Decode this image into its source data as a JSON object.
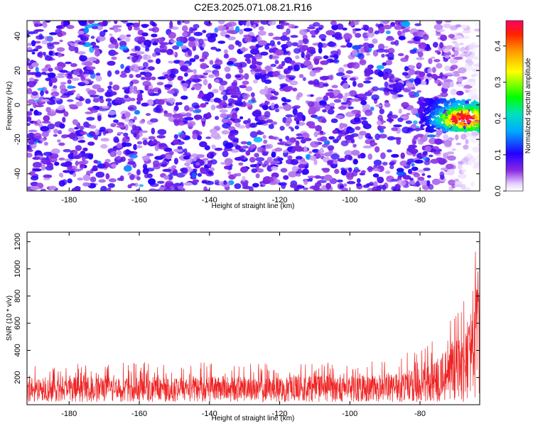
{
  "title": "C2E3.2025.071.08.21.R16",
  "chart_data": [
    {
      "type": "heatmap",
      "xlabel": "Height of straight line (km)",
      "ylabel": "Frequency (Hz)",
      "xlim": [
        -192,
        -63
      ],
      "ylim": [
        -50,
        49
      ],
      "x_ticks": [
        "-180",
        "-160",
        "-140",
        "-120",
        "-100",
        "-80"
      ],
      "x_tick_values": [
        -180,
        -160,
        -140,
        -120,
        -100,
        -80
      ],
      "y_ticks": [
        "40",
        "20",
        "0",
        "-20",
        "-40"
      ],
      "y_tick_values": [
        40,
        20,
        0,
        -20,
        -40
      ],
      "colorbar": {
        "label": "Normalized spectral amplitude",
        "range": [
          0,
          0.47
        ],
        "ticks": [
          "0.0",
          "0.1",
          "0.2",
          "0.3",
          "0.4"
        ],
        "tick_values": [
          0.0,
          0.1,
          0.2,
          0.3,
          0.4
        ]
      },
      "signal": {
        "height_range_km": [
          -80,
          -63
        ],
        "frequency_range_hz": [
          -15,
          3
        ],
        "peak_amplitude": 0.45,
        "peak_height_km": -68,
        "peak_frequency_hz": -8
      },
      "background_amplitude": 0.07
    },
    {
      "type": "line",
      "xlabel": "Height of straight line (km)",
      "ylabel": "SNR (10 * v/v)",
      "xlim": [
        -192,
        -63
      ],
      "ylim": [
        0,
        1270
      ],
      "x_ticks": [
        "-180",
        "-160",
        "-140",
        "-120",
        "-100",
        "-80"
      ],
      "x_tick_values": [
        -180,
        -160,
        -140,
        -120,
        -100,
        -80
      ],
      "y_ticks": [
        "200",
        "400",
        "600",
        "800",
        "1000",
        "1200"
      ],
      "y_tick_values": [
        200,
        400,
        600,
        800,
        1000,
        1200
      ],
      "color": "#ee2222",
      "series": [
        {
          "x": [
            -192,
            -180,
            -170,
            -160,
            -150,
            -140,
            -130,
            -120,
            -110,
            -100,
            -90,
            -85,
            -80,
            -77,
            -75,
            -73,
            -71,
            -69,
            -67,
            -66,
            -65,
            -64,
            -63
          ],
          "y_mid": [
            120,
            120,
            125,
            120,
            120,
            125,
            120,
            125,
            120,
            125,
            130,
            135,
            150,
            170,
            200,
            230,
            260,
            300,
            350,
            420,
            520,
            650,
            700
          ],
          "y_max": [
            300,
            310,
            300,
            320,
            300,
            330,
            310,
            310,
            320,
            320,
            340,
            380,
            420,
            470,
            520,
            600,
            680,
            740,
            780,
            860,
            1000,
            1250,
            1200
          ]
        }
      ]
    }
  ]
}
